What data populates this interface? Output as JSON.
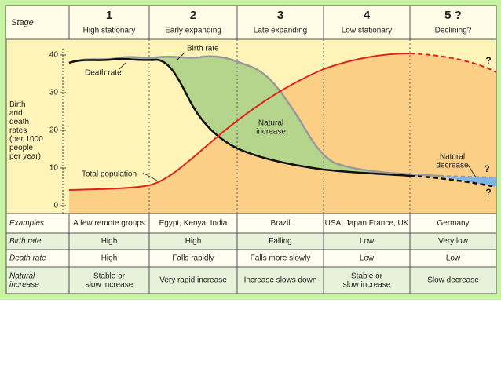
{
  "header": {
    "label": "Stage",
    "stages": [
      {
        "number": "1",
        "name": "High stationary"
      },
      {
        "number": "2",
        "name": "Early expanding"
      },
      {
        "number": "3",
        "name": "Late expanding"
      },
      {
        "number": "4",
        "name": "Low stationary"
      },
      {
        "number": "5 ?",
        "name": "Declining?"
      }
    ]
  },
  "axis": {
    "label_lines": [
      "Birth",
      "and",
      "death",
      "rates",
      "(per 1000",
      "people",
      "per year)"
    ],
    "ticks": [
      0,
      10,
      20,
      30,
      40
    ]
  },
  "annotations": {
    "birth_rate": "Birth rate",
    "death_rate": "Death rate",
    "natural_increase": [
      "Natural",
      "increase"
    ],
    "total_population": "Total population",
    "natural_decrease": [
      "Natural",
      "decrease"
    ],
    "question": "?"
  },
  "table": {
    "rows": [
      [
        "Examples",
        "A few remote groups",
        "Egypt, Kenya, India",
        "Brazil",
        "USA, Japan France, UK",
        "Germany"
      ],
      [
        "Birth rate",
        "High",
        "High",
        "Falling",
        "Low",
        "Very low"
      ],
      [
        "Death rate",
        "High",
        "Falls rapidly",
        "Falls more slowly",
        "Low",
        "Low"
      ],
      [
        [
          "Natural",
          "increase"
        ],
        [
          "Stable or",
          "slow increase"
        ],
        "Very rapid increase",
        "Increase slows down",
        [
          "Stable or",
          "slow increase"
        ],
        "Slow decrease"
      ]
    ]
  }
}
